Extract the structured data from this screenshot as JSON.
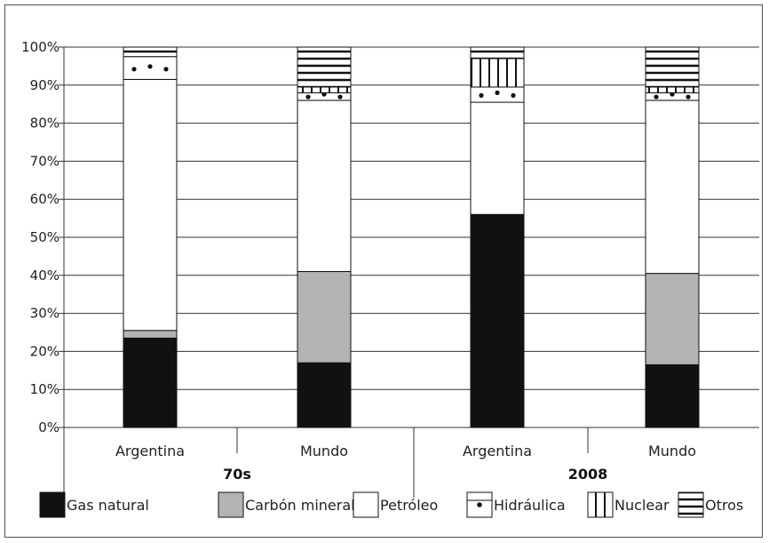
{
  "chart_data": {
    "type": "bar",
    "stacked": true,
    "ylim": [
      0,
      100
    ],
    "yticks": [
      "0%",
      "10%",
      "20%",
      "30%",
      "40%",
      "50%",
      "60%",
      "70%",
      "80%",
      "90%",
      "100%"
    ],
    "grid": true,
    "categories": [
      "Argentina",
      "Mundo",
      "Argentina",
      "Mundo"
    ],
    "groups": [
      {
        "label": "70s",
        "categories": [
          "Argentina",
          "Mundo"
        ]
      },
      {
        "label": "2008",
        "categories": [
          "Argentina",
          "Mundo"
        ]
      }
    ],
    "series": [
      {
        "name": "Gas natural",
        "values": [
          23.5,
          17,
          56,
          16.5
        ]
      },
      {
        "name": "Carbón mineral",
        "values": [
          2,
          24,
          0,
          24
        ]
      },
      {
        "name": "Petróleo",
        "values": [
          66,
          45,
          29.5,
          45.5
        ]
      },
      {
        "name": "Hidráulica",
        "values": [
          6,
          2,
          4,
          2
        ]
      },
      {
        "name": "Nuclear",
        "values": [
          0,
          1.5,
          7.5,
          1.5
        ]
      },
      {
        "name": "Otros",
        "values": [
          2.5,
          10.5,
          3,
          10.5
        ]
      }
    ],
    "legend_position": "bottom"
  }
}
